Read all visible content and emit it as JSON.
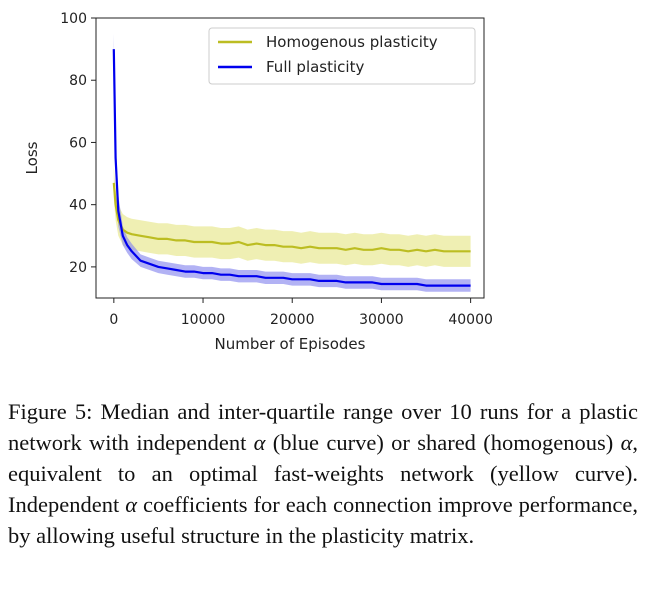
{
  "chart_data": {
    "type": "line",
    "title": "",
    "xlabel": "Number of Episodes",
    "ylabel": "Loss",
    "xlim": [
      -2000,
      41500
    ],
    "ylim": [
      10,
      100
    ],
    "xticks": [
      0,
      10000,
      20000,
      30000,
      40000
    ],
    "yticks": [
      20,
      40,
      60,
      80,
      100
    ],
    "grid": false,
    "legend_placement": "top-right",
    "x": [
      0,
      200,
      500,
      1000,
      1500,
      2000,
      3000,
      4000,
      5000,
      6000,
      7000,
      8000,
      9000,
      10000,
      11000,
      12000,
      13000,
      14000,
      15000,
      16000,
      17000,
      18000,
      19000,
      20000,
      21000,
      22000,
      23000,
      24000,
      25000,
      26000,
      27000,
      28000,
      29000,
      30000,
      31000,
      32000,
      33000,
      34000,
      35000,
      36000,
      37000,
      38000,
      39000,
      40000
    ],
    "series": [
      {
        "name": "Homogenous plasticity",
        "color": "#bcbd22",
        "band_color": "#e6e68a",
        "median": [
          47,
          40,
          35,
          32,
          31,
          30.5,
          30,
          29.5,
          29,
          29,
          28.5,
          28.5,
          28,
          28,
          28,
          27.5,
          27.5,
          28,
          27,
          27.5,
          27,
          27,
          26.5,
          26.5,
          26,
          26.5,
          26,
          26,
          26,
          25.5,
          26,
          25.5,
          25.5,
          26,
          25.5,
          25.5,
          25,
          25.5,
          25,
          25.5,
          25,
          25,
          25,
          25
        ],
        "q_low": [
          42,
          35,
          30,
          27,
          26,
          25.5,
          25,
          24.5,
          24,
          24,
          23.5,
          23.5,
          23,
          23,
          23,
          22.5,
          22.5,
          23,
          22,
          22.5,
          22,
          22,
          21.5,
          21.5,
          21,
          21.5,
          21,
          21,
          21,
          20.5,
          21,
          20.5,
          20.5,
          21,
          20.5,
          20.5,
          20,
          20.5,
          20,
          20.5,
          20,
          20,
          20,
          20
        ],
        "q_high": [
          52,
          45,
          40,
          37,
          36,
          35.5,
          35,
          34.5,
          34,
          34,
          33.5,
          33.5,
          33,
          33,
          33,
          32.5,
          32.5,
          33,
          32,
          32.5,
          32,
          32,
          31.5,
          31.5,
          31,
          31.5,
          31,
          31,
          31,
          30.5,
          31,
          30.5,
          30.5,
          31,
          30.5,
          30.5,
          30,
          30.5,
          30,
          30.5,
          30,
          30,
          30,
          30
        ]
      },
      {
        "name": "Full plasticity",
        "color": "#0000ee",
        "band_color": "#8888ee",
        "median": [
          90,
          55,
          38,
          30,
          27,
          25,
          22,
          21,
          20,
          19.5,
          19,
          18.5,
          18.5,
          18,
          18,
          17.5,
          17.5,
          17,
          17,
          17,
          16.5,
          16.5,
          16.5,
          16,
          16,
          16,
          15.5,
          15.5,
          15.5,
          15,
          15,
          15,
          15,
          14.5,
          14.5,
          14.5,
          14.5,
          14.5,
          14,
          14,
          14,
          14,
          14,
          14
        ],
        "q_low": [
          85,
          48,
          33,
          27,
          24.5,
          22.5,
          20,
          19,
          18,
          17.5,
          17,
          16.5,
          16.5,
          16,
          16,
          15.5,
          15.5,
          15,
          15,
          15,
          14.5,
          14.5,
          14.5,
          14,
          14,
          14,
          13.5,
          13.5,
          13.5,
          13,
          13,
          13,
          13,
          12.5,
          12.5,
          12.5,
          12.5,
          12.5,
          12,
          12,
          12,
          12,
          12,
          12
        ],
        "q_high": [
          95,
          62,
          43,
          33,
          29.5,
          27.5,
          24,
          23,
          22,
          21.5,
          21,
          20.5,
          20.5,
          20,
          20,
          19.5,
          19.5,
          19,
          19,
          19,
          18.5,
          18.5,
          18.5,
          18,
          18,
          18,
          17.5,
          17.5,
          17.5,
          17,
          17,
          17,
          17,
          16.5,
          16.5,
          16.5,
          16.5,
          16.5,
          16,
          16,
          16,
          16,
          16,
          16
        ]
      }
    ]
  },
  "caption": {
    "prefix": "Figure 5: Median and inter-quartile range over 10 runs for a plastic network with independent ",
    "alpha1": "α",
    "mid1": " (blue curve) or shared (homogenous) ",
    "alpha2": "α",
    "mid2": ", equivalent to an optimal fast-weights network (yellow curve). Independent ",
    "alpha3": "α",
    "suffix": " coefficients for each connection improve performance, by allowing useful structure in the plasticity matrix."
  }
}
